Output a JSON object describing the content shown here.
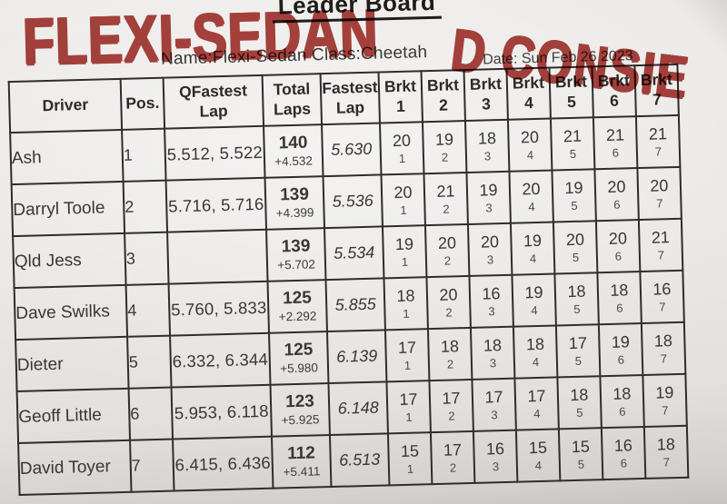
{
  "header": {
    "title": "Leader Board",
    "name_class_line": "Name:Flexi-Sedan Class:Cheetah",
    "date_line": "Date: Sun Feb 26 2023",
    "handwriting_left": "FLEXI-SEDAN",
    "handwriting_right": "D CONSIE",
    "marker_color": "#a73530",
    "paper_color": "#e9e7e5"
  },
  "table": {
    "columns": [
      [
        "Driver"
      ],
      [
        "Pos."
      ],
      [
        "QFastest",
        "Lap"
      ],
      [
        "Total",
        "Laps"
      ],
      [
        "Fastest",
        "Lap"
      ],
      [
        "Brkt",
        "1"
      ],
      [
        "Brkt",
        "2"
      ],
      [
        "Brkt",
        "3"
      ],
      [
        "Brkt",
        "4"
      ],
      [
        "Brkt",
        "5"
      ],
      [
        "Brkt",
        "6"
      ],
      [
        "Brkt",
        "7"
      ]
    ],
    "rows": [
      {
        "driver": "Ash",
        "pos": "1",
        "qfastest": "5.512, 5.522",
        "total_laps": "140",
        "total_behind": "+4.532",
        "fastest_lap": "5.630",
        "brackets": [
          [
            "20",
            "1"
          ],
          [
            "19",
            "2"
          ],
          [
            "18",
            "3"
          ],
          [
            "20",
            "4"
          ],
          [
            "21",
            "5"
          ],
          [
            "21",
            "6"
          ],
          [
            "21",
            "7"
          ]
        ]
      },
      {
        "driver": "Darryl Toole",
        "pos": "2",
        "qfastest": "5.716, 5.716",
        "total_laps": "139",
        "total_behind": "+4.399",
        "fastest_lap": "5.536",
        "brackets": [
          [
            "20",
            "1"
          ],
          [
            "21",
            "2"
          ],
          [
            "19",
            "3"
          ],
          [
            "20",
            "4"
          ],
          [
            "19",
            "5"
          ],
          [
            "20",
            "6"
          ],
          [
            "20",
            "7"
          ]
        ]
      },
      {
        "driver": "Qld Jess",
        "pos": "3",
        "qfastest": "",
        "total_laps": "139",
        "total_behind": "+5.702",
        "fastest_lap": "5.534",
        "brackets": [
          [
            "19",
            "1"
          ],
          [
            "20",
            "2"
          ],
          [
            "20",
            "3"
          ],
          [
            "19",
            "4"
          ],
          [
            "20",
            "5"
          ],
          [
            "20",
            "6"
          ],
          [
            "21",
            "7"
          ]
        ]
      },
      {
        "driver": "Dave Swilks",
        "pos": "4",
        "qfastest": "5.760, 5.833",
        "total_laps": "125",
        "total_behind": "+2.292",
        "fastest_lap": "5.855",
        "brackets": [
          [
            "18",
            "1"
          ],
          [
            "20",
            "2"
          ],
          [
            "16",
            "3"
          ],
          [
            "19",
            "4"
          ],
          [
            "18",
            "5"
          ],
          [
            "18",
            "6"
          ],
          [
            "16",
            "7"
          ]
        ]
      },
      {
        "driver": "Dieter",
        "pos": "5",
        "qfastest": "6.332, 6.344",
        "total_laps": "125",
        "total_behind": "+5.980",
        "fastest_lap": "6.139",
        "brackets": [
          [
            "17",
            "1"
          ],
          [
            "18",
            "2"
          ],
          [
            "18",
            "3"
          ],
          [
            "18",
            "4"
          ],
          [
            "17",
            "5"
          ],
          [
            "19",
            "6"
          ],
          [
            "18",
            "7"
          ]
        ]
      },
      {
        "driver": "Geoff Little",
        "pos": "6",
        "qfastest": "5.953, 6.118",
        "total_laps": "123",
        "total_behind": "+5.925",
        "fastest_lap": "6.148",
        "brackets": [
          [
            "17",
            "1"
          ],
          [
            "17",
            "2"
          ],
          [
            "17",
            "3"
          ],
          [
            "17",
            "4"
          ],
          [
            "18",
            "5"
          ],
          [
            "18",
            "6"
          ],
          [
            "19",
            "7"
          ]
        ]
      },
      {
        "driver": "David Toyer",
        "pos": "7",
        "qfastest": "6.415, 6.436",
        "total_laps": "112",
        "total_behind": "+5.411",
        "fastest_lap": "6.513",
        "brackets": [
          [
            "15",
            "1"
          ],
          [
            "17",
            "2"
          ],
          [
            "16",
            "3"
          ],
          [
            "15",
            "4"
          ],
          [
            "15",
            "5"
          ],
          [
            "16",
            "6"
          ],
          [
            "18",
            "7"
          ]
        ]
      }
    ]
  }
}
